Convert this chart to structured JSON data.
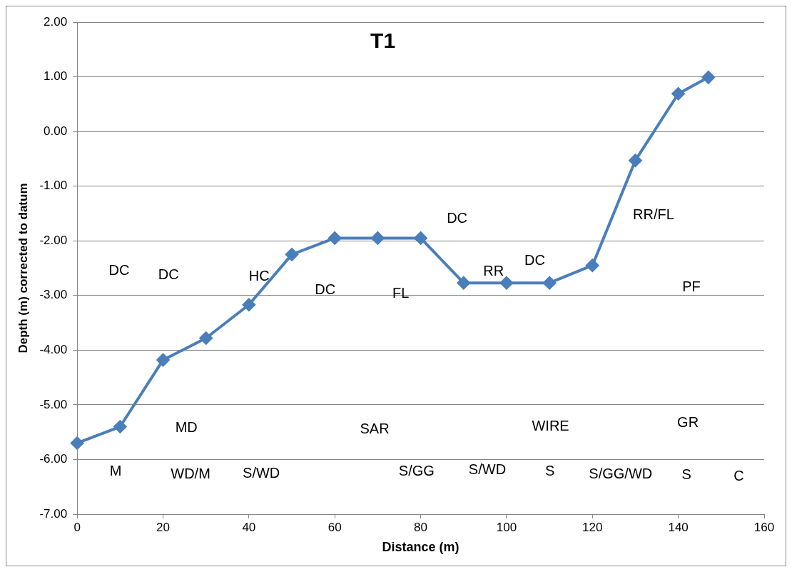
{
  "chart_data": {
    "type": "line",
    "title": "T1",
    "xlabel": "Distance (m)",
    "ylabel": "Depth (m) corrected to datum",
    "x": [
      0,
      10,
      20,
      30,
      40,
      50,
      60,
      70,
      80,
      90,
      100,
      110,
      120,
      130,
      140,
      147
    ],
    "series": [
      {
        "color": "#4a7ebb",
        "values": [
          -5.7,
          -5.4,
          -4.18,
          -3.78,
          -3.17,
          -2.25,
          -1.95,
          -1.95,
          -1.95,
          -2.77,
          -2.77,
          -2.77,
          -2.45,
          -0.53,
          0.69,
          0.99
        ]
      }
    ],
    "xlim": [
      0,
      160
    ],
    "xticks": [
      0,
      20,
      40,
      60,
      80,
      100,
      120,
      140,
      160
    ],
    "ylim": [
      -7,
      2
    ],
    "yticks": [
      {
        "value": -7,
        "label": "-7.00"
      },
      {
        "value": -6,
        "label": "-6.00"
      },
      {
        "value": -5,
        "label": "-5.00"
      },
      {
        "value": -4,
        "label": "-4.00"
      },
      {
        "value": -3,
        "label": "-3.00"
      },
      {
        "value": -2,
        "label": "-2.00"
      },
      {
        "value": -1,
        "label": "-1.00"
      },
      {
        "value": 0,
        "label": "0.00"
      },
      {
        "value": 1,
        "label": "1.00"
      },
      {
        "value": 2,
        "label": "2.00"
      }
    ],
    "grid": "y",
    "legend": false,
    "marker": "diamond",
    "line_style": "solid",
    "annotations": [
      "DC",
      "DC",
      "HC",
      "DC",
      "FL",
      "DC",
      "RR",
      "DC",
      "RR/FL",
      "PF",
      "MD",
      "SAR",
      "WIRE",
      "GR",
      "M",
      "WD/M",
      "S/WD",
      "S/GG",
      "S/WD",
      "S",
      "S/GG/WD",
      "S",
      "C"
    ]
  }
}
